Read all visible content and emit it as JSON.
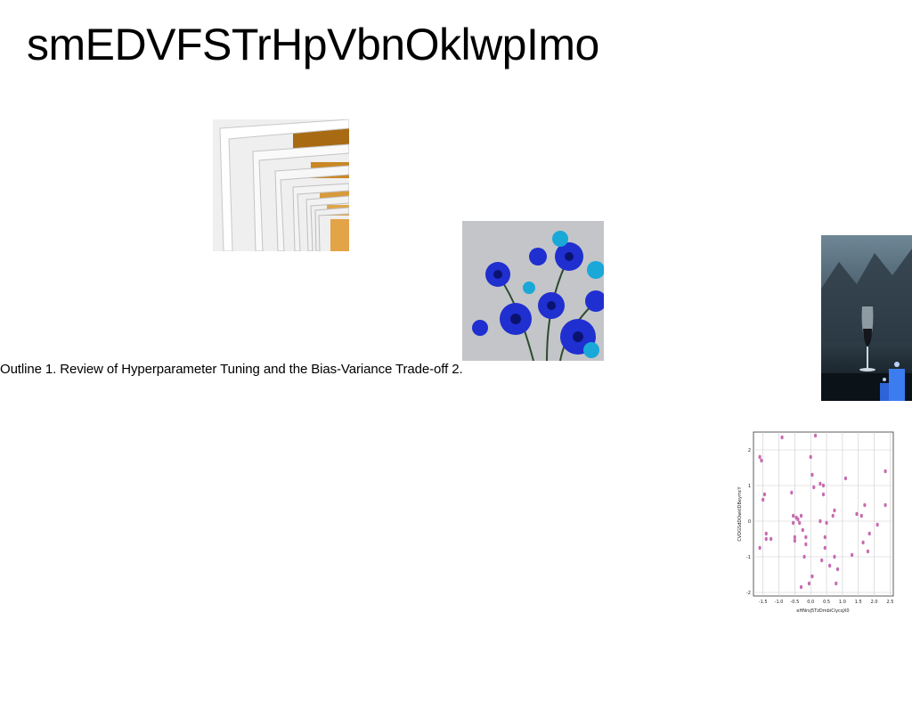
{
  "slide": {
    "title": "smEDVFSTrHpVbnOklwpImo",
    "outline_text": "Outline 1. Review of Hyperparameter Tuning and the Bias-Variance Trade-off 2."
  },
  "images": [
    {
      "name": "architecture-arches-photo",
      "colors": [
        "#f1f1f1",
        "#d9d9d9",
        "#a86a12",
        "#e3a347"
      ]
    },
    {
      "name": "blue-flowers-photo",
      "colors": [
        "#c4c5c8",
        "#1f2fd0",
        "#1aa8d8",
        "#0a1470"
      ]
    },
    {
      "name": "wine-glass-candles-photo",
      "colors": [
        "#2c3a44",
        "#6f8797",
        "#0b1218",
        "#3c7cf0"
      ]
    }
  ],
  "chart_data": {
    "type": "scatter",
    "xlabel": "eHNrsj5TzDmbiCiycqX0",
    "ylabel": "CVDGSdDOwkIDBeymcY",
    "xlim": [
      -1.8,
      2.6
    ],
    "ylim": [
      -2.1,
      2.5
    ],
    "xticks": [
      "-1.5",
      "-1.0",
      "-0.5",
      "0.0",
      "0.5",
      "1.0",
      "1.5",
      "2.0",
      "2.5"
    ],
    "xtick_values": [
      -1.5,
      -1.0,
      -0.5,
      0.0,
      0.5,
      1.0,
      1.5,
      2.0,
      2.5
    ],
    "yticks": [
      "-2",
      "-1",
      "0",
      "1",
      "2"
    ],
    "ytick_values": [
      -2,
      -1,
      0,
      1,
      2
    ],
    "grid": true,
    "marker_color": "#c76bb0",
    "points": [
      [
        -1.6,
        1.8
      ],
      [
        -1.55,
        1.7
      ],
      [
        -1.5,
        0.6
      ],
      [
        -1.45,
        0.75
      ],
      [
        -1.4,
        -0.35
      ],
      [
        -1.4,
        -0.5
      ],
      [
        -1.6,
        -0.75
      ],
      [
        -1.25,
        -0.5
      ],
      [
        -0.9,
        2.35
      ],
      [
        -0.6,
        0.8
      ],
      [
        -0.55,
        0.15
      ],
      [
        -0.55,
        -0.05
      ],
      [
        -0.5,
        -0.45
      ],
      [
        -0.5,
        -0.55
      ],
      [
        -0.45,
        0.1
      ],
      [
        -0.4,
        0.05
      ],
      [
        -0.35,
        -0.05
      ],
      [
        -0.3,
        0.15
      ],
      [
        -0.25,
        -0.25
      ],
      [
        -0.2,
        -1.0
      ],
      [
        -0.15,
        -0.45
      ],
      [
        -0.15,
        -0.65
      ],
      [
        -0.3,
        -1.85
      ],
      [
        -0.05,
        -1.75
      ],
      [
        0.0,
        1.8
      ],
      [
        0.05,
        1.3
      ],
      [
        0.1,
        0.95
      ],
      [
        0.05,
        -1.55
      ],
      [
        0.15,
        2.4
      ],
      [
        0.3,
        1.05
      ],
      [
        0.3,
        0.0
      ],
      [
        0.35,
        -1.1
      ],
      [
        0.4,
        1.0
      ],
      [
        0.4,
        0.75
      ],
      [
        0.45,
        -0.45
      ],
      [
        0.45,
        -0.75
      ],
      [
        0.5,
        -0.05
      ],
      [
        0.6,
        -1.25
      ],
      [
        0.7,
        0.15
      ],
      [
        0.75,
        0.3
      ],
      [
        0.75,
        -1.0
      ],
      [
        0.8,
        -1.75
      ],
      [
        0.85,
        -1.35
      ],
      [
        1.1,
        1.2
      ],
      [
        1.3,
        -0.95
      ],
      [
        1.45,
        0.2
      ],
      [
        1.6,
        0.15
      ],
      [
        1.65,
        -0.6
      ],
      [
        1.7,
        0.45
      ],
      [
        1.8,
        -0.85
      ],
      [
        1.85,
        -0.35
      ],
      [
        2.1,
        -0.1
      ],
      [
        2.35,
        1.4
      ],
      [
        2.35,
        0.45
      ]
    ]
  }
}
